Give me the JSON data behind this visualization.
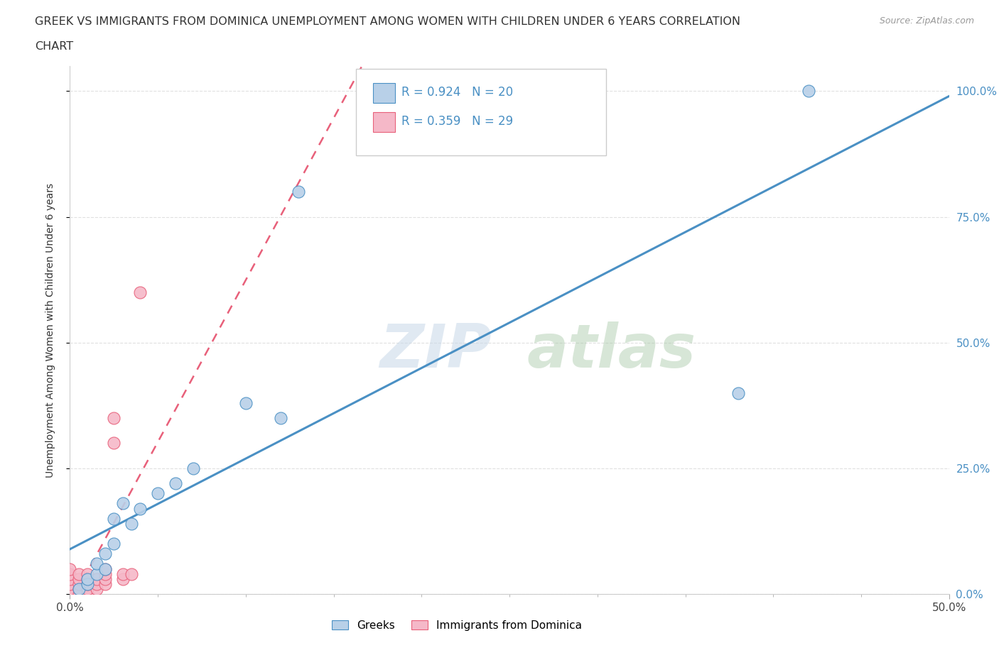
{
  "title_line1": "GREEK VS IMMIGRANTS FROM DOMINICA UNEMPLOYMENT AMONG WOMEN WITH CHILDREN UNDER 6 YEARS CORRELATION",
  "title_line2": "CHART",
  "source": "Source: ZipAtlas.com",
  "ylabel": "Unemployment Among Women with Children Under 6 years",
  "xlim": [
    0,
    0.5
  ],
  "ylim": [
    0,
    1.05
  ],
  "xticks": [
    0.0,
    0.5
  ],
  "xticklabels": [
    "0.0%",
    "50.0%"
  ],
  "yticks": [
    0.0,
    0.25,
    0.5,
    0.75,
    1.0
  ],
  "yticklabels": [
    "0.0%",
    "25.0%",
    "50.0%",
    "75.0%",
    "100.0%"
  ],
  "greek_R": "0.924",
  "greek_N": "20",
  "dominica_R": "0.359",
  "dominica_N": "29",
  "blue_color": "#b8d0e8",
  "blue_line_color": "#4a90c4",
  "pink_color": "#f5b8c8",
  "pink_line_color": "#e8607a",
  "watermark_zip": "ZIP",
  "watermark_atlas": "atlas",
  "legend_blue_label": "Greeks",
  "legend_pink_label": "Immigrants from Dominica",
  "greek_x": [
    0.005,
    0.01,
    0.01,
    0.015,
    0.015,
    0.02,
    0.02,
    0.025,
    0.025,
    0.03,
    0.035,
    0.04,
    0.05,
    0.06,
    0.07,
    0.1,
    0.12,
    0.13,
    0.38,
    0.42
  ],
  "greek_y": [
    0.01,
    0.02,
    0.03,
    0.04,
    0.06,
    0.05,
    0.08,
    0.1,
    0.15,
    0.18,
    0.14,
    0.17,
    0.2,
    0.22,
    0.25,
    0.38,
    0.35,
    0.8,
    0.4,
    1.0
  ],
  "dominica_x": [
    0.0,
    0.0,
    0.0,
    0.0,
    0.0,
    0.0,
    0.005,
    0.005,
    0.005,
    0.005,
    0.005,
    0.01,
    0.01,
    0.01,
    0.01,
    0.01,
    0.015,
    0.015,
    0.015,
    0.02,
    0.02,
    0.02,
    0.02,
    0.025,
    0.025,
    0.03,
    0.03,
    0.035,
    0.04
  ],
  "dominica_y": [
    0.0,
    0.01,
    0.02,
    0.03,
    0.04,
    0.05,
    0.0,
    0.01,
    0.02,
    0.03,
    0.04,
    0.0,
    0.01,
    0.02,
    0.03,
    0.04,
    0.01,
    0.02,
    0.03,
    0.02,
    0.03,
    0.04,
    0.05,
    0.3,
    0.35,
    0.03,
    0.04,
    0.04,
    0.6
  ],
  "xtick_minor": [
    0.05,
    0.1,
    0.15,
    0.2,
    0.25,
    0.3,
    0.35,
    0.4,
    0.45
  ]
}
